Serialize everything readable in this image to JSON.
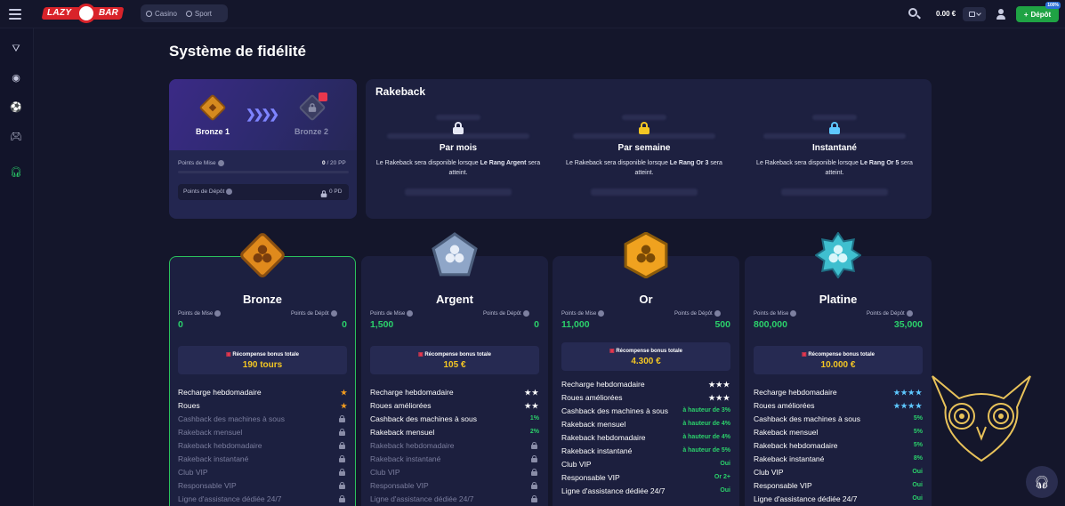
{
  "header": {
    "logo_left": "LAZY",
    "logo_right": "BAR",
    "modes": [
      "Casino",
      "Sport"
    ],
    "balance": "0.00 €",
    "deposit_label": "Dépôt",
    "deposit_badge": "100%"
  },
  "page": {
    "title": "Système de fidélité"
  },
  "progress": {
    "current_level": "Bronze 1",
    "next_level": "Bronze 2",
    "wager_points_label": "Points de Mise",
    "wager_points_current": "0",
    "wager_points_target": "/ 20 PP",
    "deposit_points_label": "Points de Dépôt",
    "deposit_points_value": "0 PD"
  },
  "rakeback": {
    "title": "Rakeback",
    "items": [
      {
        "name": "Par mois",
        "desc_a": "Le Rakeback sera disponible lorsque",
        "desc_b": "Le Rang Argent",
        "desc_c": "sera atteint.",
        "lock_color": "#e6e8f5"
      },
      {
        "name": "Par semaine",
        "desc_a": "Le Rakeback sera disponible lorsque",
        "desc_b": "Le Rang Or 3",
        "desc_c": "sera atteint.",
        "lock_color": "#f3c623"
      },
      {
        "name": "Instantané",
        "desc_a": "Le Rakeback sera disponible lorsque",
        "desc_b": "Le Rang Or 5",
        "desc_c": "sera atteint.",
        "lock_color": "#5ec8ff"
      }
    ]
  },
  "tiers_common": {
    "wager_label": "Points de Mise",
    "deposit_label": "Points de Dépôt",
    "reward_label": "Récompense bonus totale"
  },
  "tiers": [
    {
      "name": "Bronze",
      "wager": "0",
      "deposit": "0",
      "reward": "190 tours",
      "features": [
        {
          "label": "Recharge hebdomadaire",
          "value": "★"
        },
        {
          "label": "Roues",
          "value": "★"
        },
        {
          "label": "Cashback des machines à sous",
          "value": ""
        },
        {
          "label": "Rakeback mensuel",
          "value": ""
        },
        {
          "label": "Rakeback hebdomadaire",
          "value": ""
        },
        {
          "label": "Rakeback instantané",
          "value": ""
        },
        {
          "label": "Club VIP",
          "value": ""
        },
        {
          "label": "Responsable VIP",
          "value": ""
        },
        {
          "label": "Ligne d'assistance dédiée 24/7",
          "value": ""
        }
      ]
    },
    {
      "name": "Argent",
      "wager": "1,500",
      "deposit": "0",
      "reward": "105 €",
      "features": [
        {
          "label": "Recharge hebdomadaire",
          "value": "★★"
        },
        {
          "label": "Roues améliorées",
          "value": "★★"
        },
        {
          "label": "Cashback des machines à sous",
          "value": "1%"
        },
        {
          "label": "Rakeback mensuel",
          "value": "2%"
        },
        {
          "label": "Rakeback hebdomadaire",
          "value": ""
        },
        {
          "label": "Rakeback instantané",
          "value": ""
        },
        {
          "label": "Club VIP",
          "value": ""
        },
        {
          "label": "Responsable VIP",
          "value": ""
        },
        {
          "label": "Ligne d'assistance dédiée 24/7",
          "value": ""
        }
      ]
    },
    {
      "name": "Or",
      "wager": "11,000",
      "deposit": "500",
      "reward": "4.300 €",
      "features": [
        {
          "label": "Recharge hebdomadaire",
          "value": "★★★"
        },
        {
          "label": "Roues améliorées",
          "value": "★★★"
        },
        {
          "label": "Cashback des machines à sous",
          "value": "à hauteur de 3%"
        },
        {
          "label": "Rakeback mensuel",
          "value": "à hauteur de 4%"
        },
        {
          "label": "Rakeback hebdomadaire",
          "value": "à hauteur de 4%"
        },
        {
          "label": "Rakeback instantané",
          "value": "à hauteur de 5%"
        },
        {
          "label": "Club VIP",
          "value": "Oui"
        },
        {
          "label": "Responsable VIP",
          "value": "Or 2+"
        },
        {
          "label": "Ligne d'assistance dédiée 24/7",
          "value": "Oui"
        }
      ]
    },
    {
      "name": "Platine",
      "wager": "800,000",
      "deposit": "35,000",
      "reward": "10.000 €",
      "features": [
        {
          "label": "Recharge hebdomadaire",
          "value": "★★★★"
        },
        {
          "label": "Roues améliorées",
          "value": "★★★★"
        },
        {
          "label": "Cashback des machines à sous",
          "value": "5%"
        },
        {
          "label": "Rakeback mensuel",
          "value": "5%"
        },
        {
          "label": "Rakeback hebdomadaire",
          "value": "5%"
        },
        {
          "label": "Rakeback instantané",
          "value": "8%"
        },
        {
          "label": "Club VIP",
          "value": "Oui"
        },
        {
          "label": "Responsable VIP",
          "value": "Oui"
        },
        {
          "label": "Ligne d'assistance dédiée 24/7",
          "value": "Oui"
        }
      ]
    }
  ]
}
